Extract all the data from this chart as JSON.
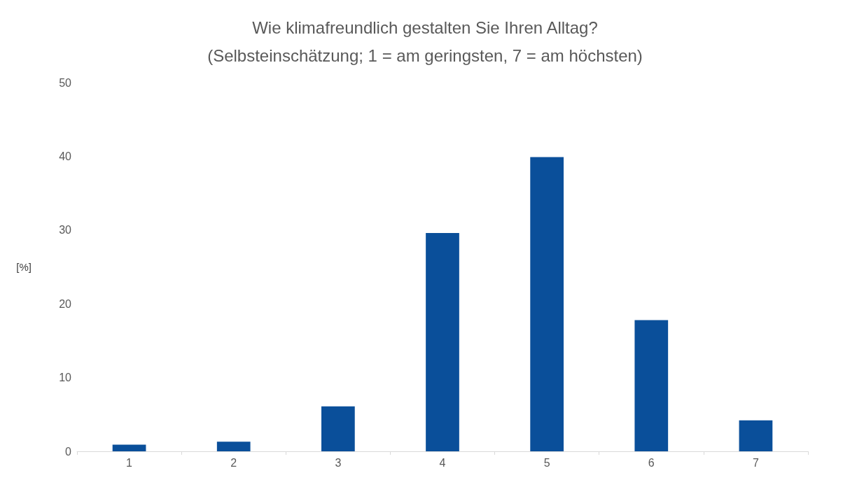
{
  "chart_data": {
    "type": "bar",
    "title": "Wie klimafreundlich gestalten Sie Ihren Alltag?",
    "subtitle": "(Selbsteinschätzung; 1 = am geringsten, 7 = am höchsten)",
    "ylabel": "[%]",
    "categories": [
      "1",
      "2",
      "3",
      "4",
      "5",
      "6",
      "7"
    ],
    "values": [
      0.9,
      1.3,
      6.1,
      29.6,
      39.9,
      17.8,
      4.2
    ],
    "color": "#0a4f9a",
    "ylim": [
      0,
      50
    ],
    "yticks": [
      0,
      10,
      20,
      30,
      40,
      50
    ],
    "grid": false
  }
}
